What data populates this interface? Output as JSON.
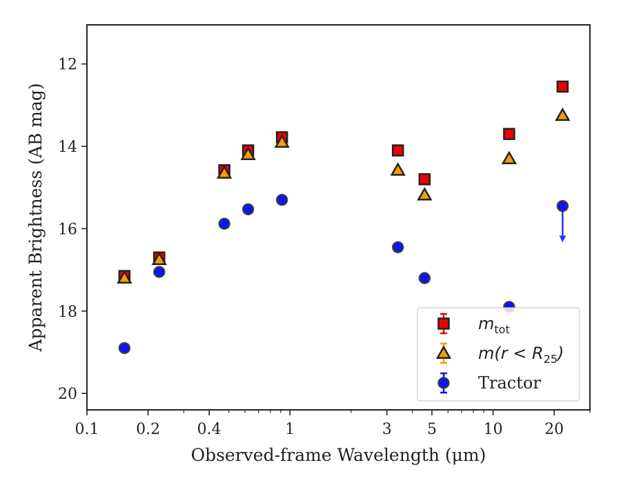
{
  "chart_data": {
    "type": "scatter",
    "xlabel": "Observed-frame Wavelength (μm)",
    "ylabel": "Apparent Brightness (AB mag)",
    "x_scale": "log",
    "xlim": [
      0.1,
      30
    ],
    "ylim": [
      20.4,
      11.05
    ],
    "y_inverted": true,
    "x_ticks": [
      {
        "value": 0.1,
        "label": "0.1"
      },
      {
        "value": 0.2,
        "label": "0.2"
      },
      {
        "value": 0.4,
        "label": "0.4"
      },
      {
        "value": 1,
        "label": "1"
      },
      {
        "value": 3,
        "label": "3"
      },
      {
        "value": 5,
        "label": "5"
      },
      {
        "value": 10,
        "label": "10"
      },
      {
        "value": 20,
        "label": "20"
      }
    ],
    "y_ticks": [
      12,
      14,
      16,
      18,
      20
    ],
    "grid": false,
    "legend_position": "lower-right",
    "series": [
      {
        "name": "m_tot",
        "legend_label": {
          "base": "m",
          "sub": "tot"
        },
        "marker": "square",
        "color": "#ee0000",
        "points": [
          {
            "x": 0.153,
            "y": 17.15
          },
          {
            "x": 0.227,
            "y": 16.7
          },
          {
            "x": 0.475,
            "y": 14.58
          },
          {
            "x": 0.622,
            "y": 14.1
          },
          {
            "x": 0.913,
            "y": 13.78
          },
          {
            "x": 3.4,
            "y": 14.1
          },
          {
            "x": 4.6,
            "y": 14.8
          },
          {
            "x": 12.0,
            "y": 13.7
          },
          {
            "x": 22.0,
            "y": 12.55
          }
        ]
      },
      {
        "name": "m(r < R25)",
        "legend_label": {
          "base": "m(r < R",
          "sub": "25",
          "tail": ")"
        },
        "marker": "triangle",
        "color": "#f5a000",
        "points": [
          {
            "x": 0.153,
            "y": 17.2
          },
          {
            "x": 0.227,
            "y": 16.75
          },
          {
            "x": 0.475,
            "y": 14.65
          },
          {
            "x": 0.622,
            "y": 14.2
          },
          {
            "x": 0.913,
            "y": 13.9
          },
          {
            "x": 3.4,
            "y": 14.58
          },
          {
            "x": 4.6,
            "y": 15.18
          },
          {
            "x": 12.0,
            "y": 14.3
          },
          {
            "x": 22.0,
            "y": 13.25
          }
        ]
      },
      {
        "name": "Tractor",
        "legend_label": {
          "base": "Tractor"
        },
        "marker": "circle",
        "color": "#0a14ff",
        "points": [
          {
            "x": 0.153,
            "y": 18.9
          },
          {
            "x": 0.227,
            "y": 17.05
          },
          {
            "x": 0.475,
            "y": 15.88
          },
          {
            "x": 0.622,
            "y": 15.53
          },
          {
            "x": 0.913,
            "y": 15.3
          },
          {
            "x": 3.4,
            "y": 16.45
          },
          {
            "x": 4.6,
            "y": 17.2
          },
          {
            "x": 12.0,
            "y": 17.9
          },
          {
            "x": 22.0,
            "y": 15.45,
            "upper_limit": true,
            "limit_to": 16.35
          }
        ]
      }
    ]
  }
}
